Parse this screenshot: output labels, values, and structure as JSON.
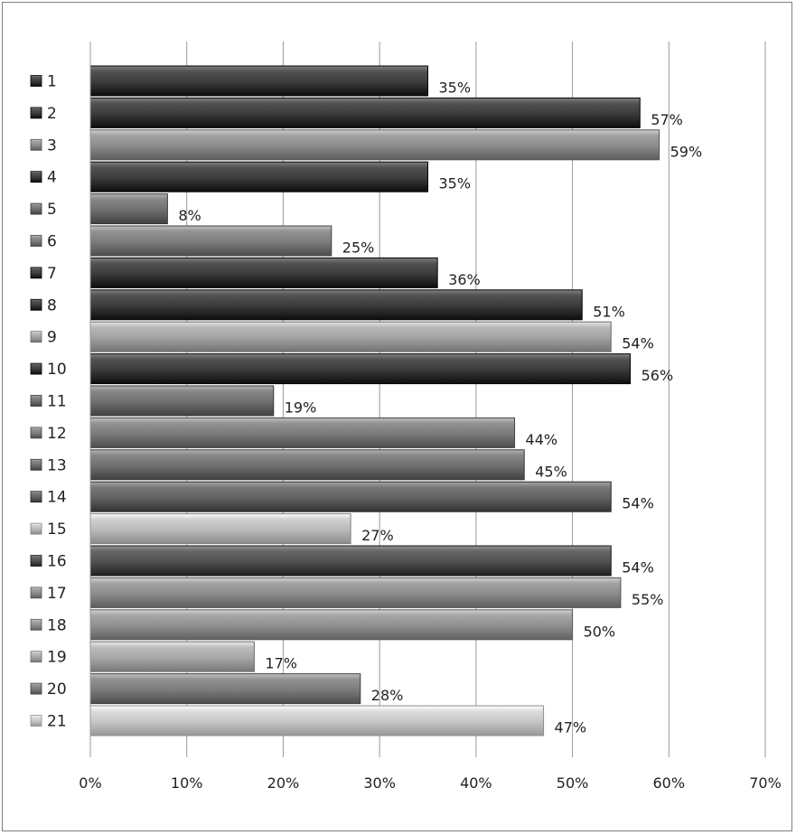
{
  "chart_data": {
    "type": "bar",
    "orientation": "horizontal",
    "categories": [
      "1",
      "2",
      "3",
      "4",
      "5",
      "6",
      "7",
      "8",
      "9",
      "10",
      "11",
      "12",
      "13",
      "14",
      "15",
      "16",
      "17",
      "18",
      "19",
      "20",
      "21"
    ],
    "values": [
      35,
      57,
      59,
      35,
      8,
      25,
      36,
      51,
      54,
      56,
      19,
      44,
      45,
      54,
      27,
      54,
      55,
      50,
      17,
      28,
      47
    ],
    "value_labels": [
      "35%",
      "57%",
      "59%",
      "35%",
      "8%",
      "25%",
      "36%",
      "51%",
      "54%",
      "56%",
      "19%",
      "44%",
      "45%",
      "54%",
      "27%",
      "54%",
      "55%",
      "50%",
      "17%",
      "28%",
      "47%"
    ],
    "xlim": [
      0,
      70
    ],
    "x_ticks": [
      0,
      10,
      20,
      30,
      40,
      50,
      60,
      70
    ],
    "x_tick_labels": [
      "0%",
      "10%",
      "20%",
      "30%",
      "40%",
      "50%",
      "60%",
      "70%"
    ],
    "bar_colors": [
      "#3a3a3a",
      "#3a3a3a",
      "#8a8a8a",
      "#3a3a3a",
      "#6e6e6e",
      "#7a7a7a",
      "#3a3a3a",
      "#3a3a3a",
      "#a0a0a0",
      "#3a3a3a",
      "#6e6e6e",
      "#7a7a7a",
      "#6e6e6e",
      "#606060",
      "#b8b8b8",
      "#4e4e4e",
      "#8a8a8a",
      "#8e8e8e",
      "#a5a5a5",
      "#7a7a7a",
      "#c4c4c4"
    ],
    "grid": true,
    "legend": "category labels with markers on left",
    "title": "",
    "xlabel": "",
    "ylabel": ""
  }
}
